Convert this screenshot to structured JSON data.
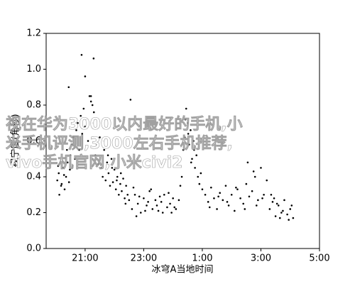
{
  "chart_data": {
    "type": "scatter",
    "xlabel": "冰穹A当地时间",
    "ylabel": "视宁度(角秒)",
    "color": "#000000",
    "xlim": [
      19.67,
      29
    ],
    "xticks": [
      {
        "value": 21,
        "label": "21:00"
      },
      {
        "value": 23,
        "label": "23:00"
      },
      {
        "value": 25,
        "label": "1:00"
      },
      {
        "value": 27,
        "label": "3:00"
      },
      {
        "value": 29,
        "label": "5:00"
      }
    ],
    "ylim": [
      0,
      1.2
    ],
    "yticks": [
      {
        "value": 0,
        "label": "0.0"
      },
      0.2,
      0.4,
      0.6,
      0.8,
      {
        "value": 1,
        "label": "1.0"
      },
      1.2
    ],
    "x": [
      20.05,
      20.1,
      20.12,
      20.2,
      20.25,
      20.3,
      20.35,
      20.4,
      20.45,
      20.5,
      20.08,
      20.18,
      20.28,
      20.38,
      20.48,
      20.55,
      20.6,
      20.65,
      20.7,
      20.75,
      20.8,
      20.85,
      20.9,
      20.95,
      21.0,
      21.05,
      21.1,
      21.15,
      21.2,
      21.25,
      21.3,
      21.35,
      21.4,
      21.45,
      21.5,
      20.44,
      20.88,
      21.0,
      21.29,
      21.2,
      21.25,
      21.55,
      21.6,
      21.65,
      21.7,
      21.75,
      21.8,
      21.85,
      21.9,
      21.95,
      22.0,
      22.05,
      22.1,
      22.15,
      22.2,
      22.25,
      22.3,
      22.35,
      22.4,
      22.45,
      22.5,
      21.62,
      21.78,
      21.92,
      22.08,
      22.22,
      22.38,
      22.55,
      22.6,
      22.7,
      22.8,
      22.9,
      23.0,
      23.1,
      23.2,
      23.3,
      23.4,
      23.5,
      23.6,
      23.7,
      23.8,
      23.9,
      24.0,
      24.1,
      24.2,
      22.65,
      22.85,
      23.05,
      23.25,
      23.45,
      23.65,
      23.85,
      24.05,
      24.25,
      22.75,
      23.15,
      23.55,
      23.95,
      24.3,
      24.35,
      24.4,
      24.45,
      24.5,
      24.55,
      24.6,
      24.65,
      24.7,
      24.75,
      24.8,
      24.85,
      24.9,
      24.95,
      25.0,
      24.42,
      24.52,
      24.62,
      24.72,
      25.1,
      25.2,
      25.3,
      25.4,
      25.5,
      25.6,
      25.7,
      25.8,
      25.9,
      26.0,
      26.1,
      26.2,
      26.3,
      26.4,
      26.5,
      26.6,
      26.7,
      26.8,
      26.9,
      27.0,
      27.1,
      27.2,
      25.25,
      25.55,
      25.85,
      26.15,
      26.45,
      26.75,
      27.05,
      26.55,
      26.85,
      27.3,
      27.4,
      27.5,
      27.6,
      27.7,
      27.8,
      27.9,
      28.0,
      28.1,
      27.35,
      27.55,
      27.75,
      27.95,
      28.05,
      27.45,
      27.65
    ],
    "values": [
      0.38,
      0.42,
      0.3,
      0.36,
      0.45,
      0.33,
      0.4,
      0.48,
      0.37,
      0.52,
      0.46,
      0.35,
      0.41,
      0.55,
      0.44,
      0.58,
      0.62,
      0.5,
      0.66,
      0.7,
      0.55,
      0.74,
      0.64,
      0.78,
      0.68,
      0.72,
      0.6,
      0.85,
      0.82,
      0.7,
      0.76,
      0.52,
      0.58,
      0.47,
      0.62,
      0.9,
      1.08,
      0.96,
      1.06,
      0.85,
      0.8,
      0.45,
      0.4,
      0.55,
      0.38,
      0.48,
      0.42,
      0.35,
      0.5,
      0.37,
      0.44,
      0.33,
      0.4,
      0.3,
      0.36,
      0.32,
      0.39,
      0.28,
      0.35,
      0.3,
      0.27,
      0.6,
      0.52,
      0.45,
      0.38,
      0.42,
      0.25,
      0.83,
      0.22,
      0.3,
      0.25,
      0.2,
      0.28,
      0.24,
      0.32,
      0.22,
      0.27,
      0.21,
      0.26,
      0.3,
      0.23,
      0.25,
      0.28,
      0.22,
      0.27,
      0.34,
      0.29,
      0.21,
      0.33,
      0.24,
      0.2,
      0.31,
      0.23,
      0.35,
      0.18,
      0.26,
      0.29,
      0.2,
      0.4,
      0.55,
      0.62,
      0.78,
      0.7,
      0.58,
      0.66,
      0.5,
      0.6,
      0.45,
      0.52,
      0.4,
      0.36,
      0.42,
      0.33,
      0.72,
      0.64,
      0.48,
      0.55,
      0.3,
      0.26,
      0.34,
      0.28,
      0.22,
      0.31,
      0.27,
      0.35,
      0.24,
      0.3,
      0.21,
      0.33,
      0.28,
      0.25,
      0.36,
      0.29,
      0.32,
      0.4,
      0.27,
      0.45,
      0.3,
      0.38,
      0.23,
      0.29,
      0.26,
      0.34,
      0.22,
      0.43,
      0.28,
      0.48,
      0.24,
      0.22,
      0.26,
      0.18,
      0.24,
      0.2,
      0.27,
      0.19,
      0.22,
      0.17,
      0.3,
      0.25,
      0.21,
      0.16,
      0.24,
      0.28,
      0.17
    ]
  },
  "watermark": [
    "视在华为3000以内最好的手机,小",
    "米手机评测,3000左右手机推荐,",
    "vivo手机官网,小米civi2"
  ]
}
